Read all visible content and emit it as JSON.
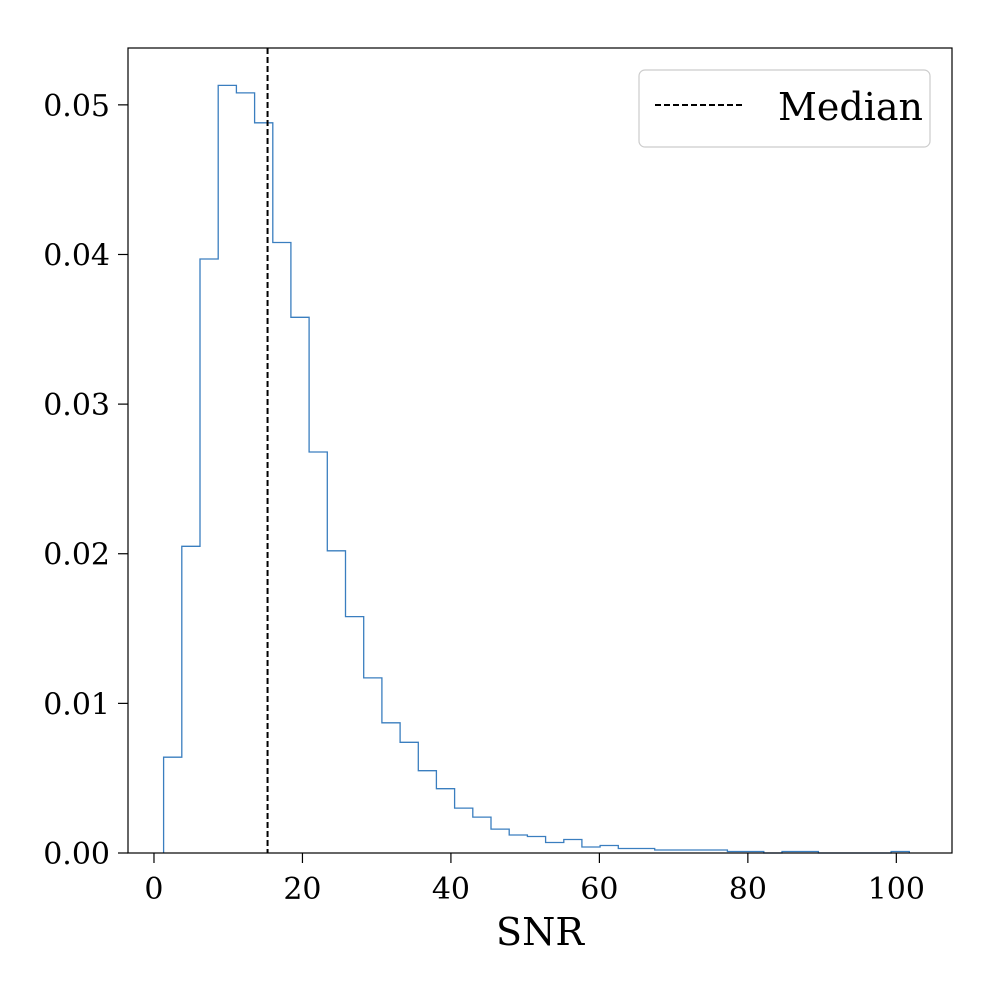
{
  "chart_data": {
    "type": "histogram",
    "title": "",
    "xlabel": "SNR",
    "ylabel": "",
    "xlim": [
      -3.5,
      107.5
    ],
    "ylim": [
      0,
      0.0538
    ],
    "xticks": [
      0,
      20,
      40,
      60,
      80,
      100
    ],
    "xtick_labels": [
      "0",
      "20",
      "40",
      "60",
      "80",
      "100"
    ],
    "yticks": [
      0,
      0.01,
      0.02,
      0.03,
      0.04,
      0.05
    ],
    "ytick_labels": [
      "0.00",
      "0.01",
      "0.02",
      "0.03",
      "0.04",
      "0.05"
    ],
    "grid": false,
    "bin_edges": [
      1.3,
      3.75,
      6.2,
      8.65,
      11.1,
      13.55,
      16.0,
      18.45,
      20.9,
      23.35,
      25.8,
      28.25,
      30.7,
      33.15,
      35.6,
      38.05,
      40.5,
      42.95,
      45.4,
      47.85,
      50.3,
      52.75,
      55.2,
      57.65,
      60.1,
      62.55,
      65.0,
      67.45,
      69.9,
      72.35,
      74.8,
      77.25,
      79.7,
      82.15,
      84.6,
      87.05,
      89.5,
      91.95,
      94.4,
      96.85,
      99.3,
      101.75
    ],
    "density": [
      0.0064,
      0.0205,
      0.0397,
      0.0513,
      0.0508,
      0.0488,
      0.0408,
      0.0358,
      0.0268,
      0.0202,
      0.0158,
      0.0117,
      0.0087,
      0.0074,
      0.0055,
      0.0043,
      0.003,
      0.0024,
      0.0016,
      0.0012,
      0.0011,
      0.0007,
      0.0009,
      0.0004,
      0.0005,
      0.0003,
      0.0003,
      0.0002,
      0.0002,
      0.0002,
      0.0002,
      0.0001,
      0.0001,
      0.0,
      0.0001,
      0.0001,
      0.0,
      0.0,
      0.0,
      0.0,
      0.0001
    ],
    "series": [
      {
        "name": "",
        "color": "#3a7ebf"
      }
    ],
    "median": {
      "label": "Median",
      "value": 15.3,
      "color": "#000000",
      "linestyle": "dashed"
    },
    "legend": {
      "placement": "top-right",
      "entries": [
        "Median"
      ]
    }
  }
}
